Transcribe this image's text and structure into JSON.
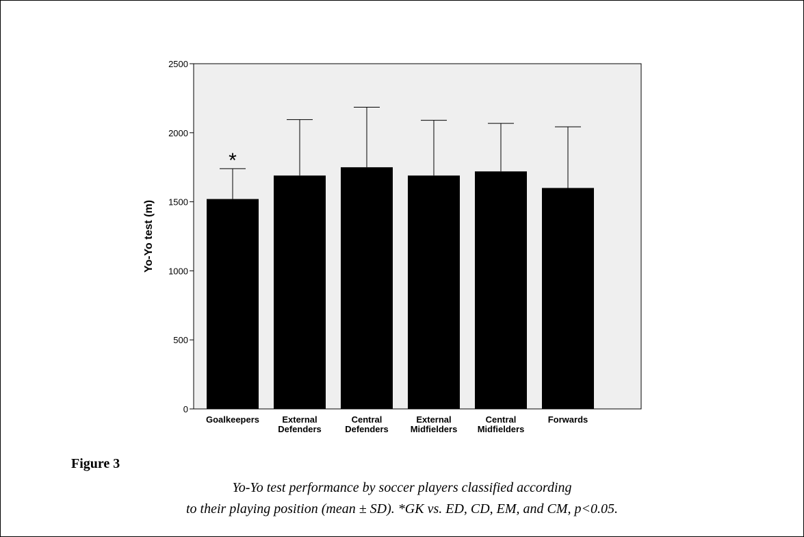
{
  "figure": {
    "label": "Figure 3",
    "caption_line1": "Yo-Yo test performance by soccer players classified according",
    "caption_line2": "to their playing position (mean ± SD). *GK vs. ED, CD, EM, and CM, p<0.05."
  },
  "chart_data": {
    "type": "bar",
    "categories": [
      [
        "Goalkeepers"
      ],
      [
        "External",
        "Defenders"
      ],
      [
        "Central",
        "Defenders"
      ],
      [
        "External",
        "Midfielders"
      ],
      [
        "Central",
        "Midfielders"
      ],
      [
        "Forwards"
      ]
    ],
    "values": [
      1520,
      1690,
      1750,
      1690,
      1720,
      1600
    ],
    "sd": [
      220,
      405,
      435,
      400,
      348,
      443
    ],
    "annotations": [
      "*",
      "",
      "",
      "",
      "",
      ""
    ],
    "ylabel": "Yo-Yo test (m)",
    "xlabel": "",
    "ylim": [
      0,
      2500
    ],
    "yticks": [
      0,
      500,
      1000,
      1500,
      2000,
      2500
    ],
    "grid": false,
    "colors": {
      "bar": "#000000",
      "plot_background": "#efefef",
      "axis": "#000000"
    }
  }
}
